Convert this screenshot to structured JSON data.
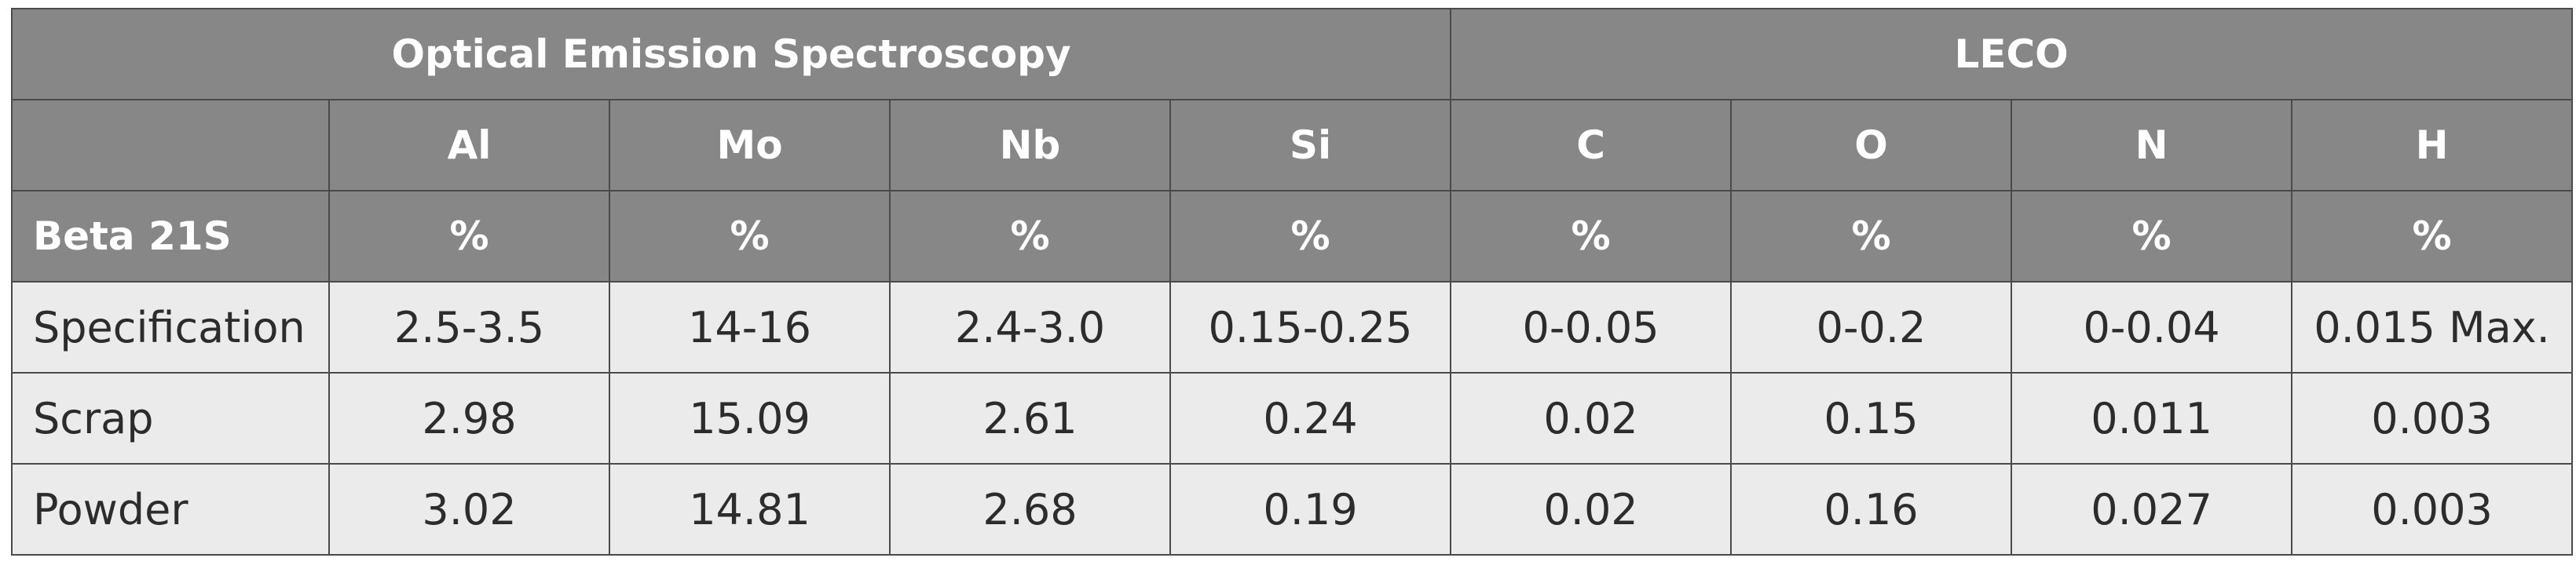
{
  "table": {
    "group_headers": [
      "Optical Emission Spectroscopy",
      "LECO"
    ],
    "element_headers": [
      "Al",
      "Mo",
      "Nb",
      "Si",
      "C",
      "O",
      "N",
      "H"
    ],
    "unit_row_label": "Beta 21S",
    "units": [
      "%",
      "%",
      "%",
      "%",
      "%",
      "%",
      "%",
      "%"
    ],
    "rows": [
      {
        "label": "Specification",
        "values": [
          "2.5-3.5",
          "14-16",
          "2.4-3.0",
          "0.15-0.25",
          "0-0.05",
          "0-0.2",
          "0-0.04",
          "0.015 Max."
        ]
      },
      {
        "label": "Scrap",
        "values": [
          "2.98",
          "15.09",
          "2.61",
          "0.24",
          "0.02",
          "0.15",
          "0.011",
          "0.003"
        ]
      },
      {
        "label": "Powder",
        "values": [
          "3.02",
          "14.81",
          "2.68",
          "0.19",
          "0.02",
          "0.16",
          "0.027",
          "0.003"
        ]
      }
    ]
  },
  "colors": {
    "header_bg": "#878787",
    "header_text": "#ffffff",
    "body_bg": "#ebebeb",
    "body_text": "#2c2c2c",
    "border": "#4a4a4a"
  }
}
